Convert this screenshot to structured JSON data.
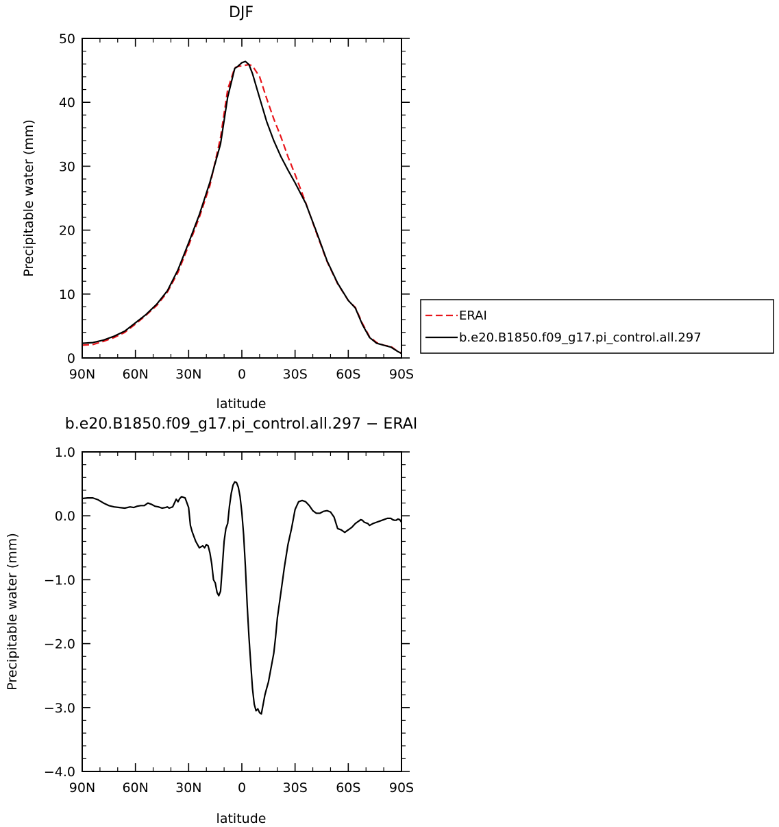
{
  "chart_data": [
    {
      "type": "line",
      "title": "DJF",
      "xlabel": "latitude",
      "ylabel": "Precipitable water (mm)",
      "xlim": [
        90,
        -90
      ],
      "ylim": [
        0,
        50
      ],
      "xticks": [
        {
          "value": 90,
          "label": "90N"
        },
        {
          "value": 60,
          "label": "60N"
        },
        {
          "value": 30,
          "label": "30N"
        },
        {
          "value": 0,
          "label": "0"
        },
        {
          "value": -30,
          "label": "30S"
        },
        {
          "value": -60,
          "label": "60S"
        },
        {
          "value": -90,
          "label": "90S"
        }
      ],
      "yticks": [
        {
          "value": 0,
          "label": "0"
        },
        {
          "value": 10,
          "label": "10"
        },
        {
          "value": 20,
          "label": "20"
        },
        {
          "value": 30,
          "label": "30"
        },
        {
          "value": 40,
          "label": "40"
        },
        {
          "value": 50,
          "label": "50"
        }
      ],
      "legend_position": "right",
      "series": [
        {
          "name": "ERAI",
          "color": "#e8141a",
          "dash": "dashed",
          "x": [
            90,
            84,
            78,
            72,
            66,
            60,
            54,
            48,
            42,
            36,
            30,
            24,
            18,
            12,
            8,
            4,
            2,
            0,
            -2,
            -4,
            -6,
            -10,
            -14,
            -18,
            -22,
            -26,
            -30,
            -36,
            -42,
            -48,
            -54,
            -60,
            -64,
            -68,
            -72,
            -76,
            -80,
            -84,
            -88,
            -90
          ],
          "y": [
            2.0,
            2.1,
            2.6,
            3.2,
            4.0,
            5.3,
            6.7,
            8.2,
            10.3,
            13.4,
            17.6,
            22.0,
            27.0,
            34.5,
            42.0,
            45.4,
            45.6,
            45.7,
            45.8,
            45.9,
            45.7,
            44.0,
            40.6,
            37.4,
            34.6,
            31.5,
            28.7,
            24.3,
            19.6,
            15.1,
            11.6,
            9.0,
            7.9,
            5.4,
            3.3,
            2.4,
            2.0,
            1.8,
            1.0,
            0.8
          ]
        },
        {
          "name": "b.e20.B1850.f09_g17.pi_control.all.297",
          "color": "#000000",
          "dash": "solid",
          "x": [
            90,
            84,
            78,
            72,
            66,
            60,
            54,
            48,
            42,
            36,
            30,
            24,
            18,
            12,
            8,
            4,
            2,
            0,
            -2,
            -4,
            -6,
            -10,
            -14,
            -18,
            -22,
            -26,
            -30,
            -36,
            -42,
            -48,
            -54,
            -60,
            -64,
            -68,
            -72,
            -76,
            -80,
            -84,
            -88,
            -90
          ],
          "y": [
            2.3,
            2.4,
            2.8,
            3.4,
            4.2,
            5.5,
            6.8,
            8.4,
            10.5,
            13.8,
            18.0,
            22.4,
            27.5,
            33.5,
            40.8,
            45.3,
            45.7,
            46.2,
            46.4,
            45.9,
            44.5,
            40.7,
            37.0,
            34.0,
            31.5,
            29.4,
            27.4,
            24.2,
            19.8,
            15.2,
            11.7,
            9.0,
            7.8,
            5.2,
            3.2,
            2.3,
            2.0,
            1.7,
            1.0,
            0.7
          ]
        }
      ]
    },
    {
      "type": "line",
      "title": "b.e20.B1850.f09_g17.pi_control.all.297 − ERAI",
      "xlabel": "latitude",
      "ylabel": "Precipitable water (mm)",
      "xlim": [
        90,
        -90
      ],
      "ylim": [
        -4.0,
        1.0
      ],
      "xticks": [
        {
          "value": 90,
          "label": "90N"
        },
        {
          "value": 60,
          "label": "60N"
        },
        {
          "value": 30,
          "label": "30N"
        },
        {
          "value": 0,
          "label": "0"
        },
        {
          "value": -30,
          "label": "30S"
        },
        {
          "value": -60,
          "label": "60S"
        },
        {
          "value": -90,
          "label": "90S"
        }
      ],
      "yticks": [
        {
          "value": -4.0,
          "label": "−4.0"
        },
        {
          "value": -3.0,
          "label": "−3.0"
        },
        {
          "value": -2.0,
          "label": "−2.0"
        },
        {
          "value": -1.0,
          "label": "−1.0"
        },
        {
          "value": 0.0,
          "label": "0.0"
        },
        {
          "value": 1.0,
          "label": "1.0"
        }
      ],
      "series": [
        {
          "name": "",
          "color": "#000000",
          "dash": "solid",
          "x": [
            90,
            87,
            84,
            81,
            78,
            75,
            72,
            69,
            66,
            63,
            61,
            59,
            57,
            55,
            53,
            51,
            49,
            47,
            45,
            43,
            42,
            41,
            40,
            39,
            38,
            37,
            36,
            35,
            34,
            32,
            30,
            29,
            28,
            26,
            24,
            22,
            21,
            20,
            19,
            18,
            17,
            16,
            15,
            14,
            13,
            12,
            11,
            10,
            9,
            8,
            7,
            6,
            5,
            4,
            3,
            2,
            1,
            0,
            -1,
            -2,
            -3,
            -4,
            -5,
            -6,
            -7,
            -8,
            -9,
            -10,
            -11,
            -12,
            -13,
            -14,
            -15,
            -16,
            -17,
            -18,
            -19,
            -20,
            -22,
            -24,
            -26,
            -28,
            -30,
            -32,
            -34,
            -36,
            -38,
            -40,
            -42,
            -44,
            -46,
            -48,
            -50,
            -52,
            -54,
            -56,
            -58,
            -60,
            -62,
            -64,
            -65,
            -66,
            -67,
            -68,
            -69,
            -70,
            -71,
            -72,
            -74,
            -76,
            -78,
            -80,
            -82,
            -84,
            -85,
            -86,
            -87,
            -88,
            -89,
            -90
          ],
          "y": [
            0.27,
            0.28,
            0.28,
            0.25,
            0.2,
            0.16,
            0.14,
            0.13,
            0.12,
            0.14,
            0.13,
            0.15,
            0.16,
            0.16,
            0.2,
            0.18,
            0.15,
            0.14,
            0.12,
            0.13,
            0.14,
            0.12,
            0.13,
            0.14,
            0.2,
            0.26,
            0.22,
            0.27,
            0.3,
            0.28,
            0.13,
            -0.15,
            -0.25,
            -0.4,
            -0.5,
            -0.47,
            -0.5,
            -0.45,
            -0.47,
            -0.58,
            -0.75,
            -1.0,
            -1.05,
            -1.2,
            -1.25,
            -1.18,
            -0.8,
            -0.4,
            -0.2,
            -0.12,
            0.15,
            0.35,
            0.48,
            0.53,
            0.52,
            0.45,
            0.3,
            0.05,
            -0.3,
            -0.8,
            -1.4,
            -1.9,
            -2.3,
            -2.7,
            -2.95,
            -3.05,
            -3.02,
            -3.08,
            -3.1,
            -2.95,
            -2.8,
            -2.7,
            -2.6,
            -2.45,
            -2.3,
            -2.15,
            -1.9,
            -1.6,
            -1.2,
            -0.8,
            -0.45,
            -0.2,
            0.1,
            0.22,
            0.24,
            0.22,
            0.16,
            0.08,
            0.04,
            0.04,
            0.07,
            0.08,
            0.06,
            -0.02,
            -0.2,
            -0.22,
            -0.26,
            -0.22,
            -0.18,
            -0.12,
            -0.1,
            -0.08,
            -0.06,
            -0.07,
            -0.1,
            -0.11,
            -0.12,
            -0.15,
            -0.12,
            -0.1,
            -0.08,
            -0.06,
            -0.04,
            -0.04,
            -0.06,
            -0.07,
            -0.07,
            -0.05,
            -0.06,
            -0.1
          ]
        }
      ]
    }
  ]
}
